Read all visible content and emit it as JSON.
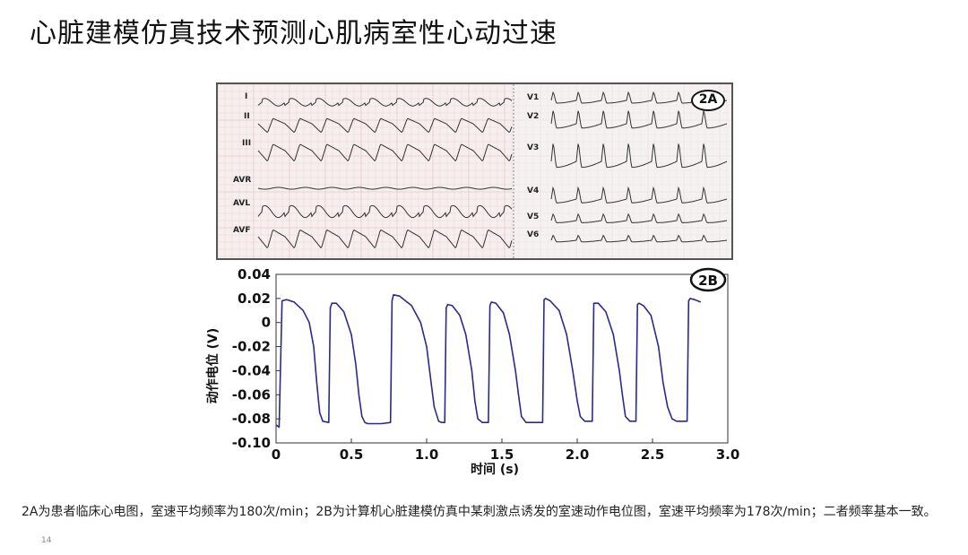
{
  "slide": {
    "title": "心脏建模仿真技术预测心肌病室性心动过速",
    "caption": "2A为患者临床心电图，室速平均频率为180次/min；2B为计算机心脏建模仿真中某刺激点诱发的室速动作电位图，室速平均频率为178次/min；二者频率基本一致。",
    "page_number": "14"
  },
  "ecg": {
    "badge": "2A",
    "limb_leads": [
      "I",
      "II",
      "III",
      "AVR",
      "AVL",
      "AVF"
    ],
    "chest_leads": [
      "V1",
      "V2",
      "V3",
      "V4",
      "V5",
      "V6"
    ],
    "colors": {
      "paper": "#f7eeee",
      "grid": "#e6c9c9",
      "trace": "#333333"
    }
  },
  "chart_data": {
    "type": "line",
    "badge": "2B",
    "xlabel": "时间 (s)",
    "ylabel": "动作电位 (V)",
    "xlim": [
      0,
      3.0
    ],
    "ylim": [
      -0.1,
      0.04
    ],
    "xticks": [
      0,
      0.5,
      1.0,
      1.5,
      2.0,
      2.5,
      3.0
    ],
    "xtick_labels": [
      "0",
      "0.5",
      "1.0",
      "1.5",
      "2.0",
      "2.5",
      "3.0"
    ],
    "yticks": [
      0.04,
      0.02,
      0,
      -0.02,
      -0.04,
      -0.06,
      -0.08,
      -0.1
    ],
    "ytick_labels": [
      "0.04",
      "0.02",
      "0",
      "-0.02",
      "-0.04",
      "-0.06",
      "-0.08",
      "-0.10"
    ],
    "color": "#2a2a8a",
    "series": [
      {
        "x": [
          0.0,
          0.02,
          0.04,
          0.07,
          0.12,
          0.18,
          0.22,
          0.25,
          0.27,
          0.29,
          0.31,
          0.35,
          0.36,
          0.37,
          0.4,
          0.45,
          0.5,
          0.53,
          0.55,
          0.57,
          0.59,
          0.61,
          0.67,
          0.7,
          0.76,
          0.77,
          0.78,
          0.82,
          0.9,
          0.96,
          1.0,
          1.03,
          1.05,
          1.08,
          1.1,
          1.12,
          1.13,
          1.14,
          1.17,
          1.22,
          1.26,
          1.3,
          1.32,
          1.34,
          1.37,
          1.39,
          1.41,
          1.42,
          1.43,
          1.46,
          1.51,
          1.55,
          1.59,
          1.61,
          1.63,
          1.66,
          1.68,
          1.71,
          1.77,
          1.78,
          1.79,
          1.82,
          1.88,
          1.93,
          1.97,
          2.0,
          2.02,
          2.05,
          2.07,
          2.09,
          2.1,
          2.11,
          2.14,
          2.19,
          2.24,
          2.28,
          2.3,
          2.32,
          2.35,
          2.37,
          2.39,
          2.4,
          2.41,
          2.44,
          2.49,
          2.54,
          2.57,
          2.6,
          2.63,
          2.66,
          2.69,
          2.73,
          2.74,
          2.75,
          2.78,
          2.82
        ],
        "y": [
          -0.085,
          -0.087,
          0.018,
          0.019,
          0.017,
          0.01,
          0.0,
          -0.02,
          -0.05,
          -0.075,
          -0.082,
          -0.083,
          0.012,
          0.016,
          0.016,
          0.009,
          -0.01,
          -0.035,
          -0.06,
          -0.078,
          -0.083,
          -0.084,
          -0.084,
          -0.084,
          -0.083,
          0.018,
          0.023,
          0.022,
          0.014,
          0.0,
          -0.02,
          -0.05,
          -0.07,
          -0.082,
          -0.083,
          -0.083,
          0.012,
          0.015,
          0.014,
          0.006,
          -0.01,
          -0.04,
          -0.065,
          -0.08,
          -0.083,
          -0.083,
          -0.083,
          0.014,
          0.017,
          0.016,
          0.008,
          -0.01,
          -0.04,
          -0.06,
          -0.078,
          -0.083,
          -0.083,
          -0.083,
          -0.083,
          0.019,
          0.02,
          0.018,
          0.01,
          -0.01,
          -0.04,
          -0.065,
          -0.078,
          -0.082,
          -0.082,
          -0.082,
          -0.082,
          0.016,
          0.016,
          0.009,
          -0.01,
          -0.04,
          -0.06,
          -0.078,
          -0.082,
          -0.082,
          -0.082,
          0.015,
          0.016,
          0.014,
          0.006,
          -0.02,
          -0.05,
          -0.07,
          -0.08,
          -0.082,
          -0.082,
          -0.082,
          0.018,
          0.02,
          0.019,
          0.017
        ]
      }
    ]
  }
}
